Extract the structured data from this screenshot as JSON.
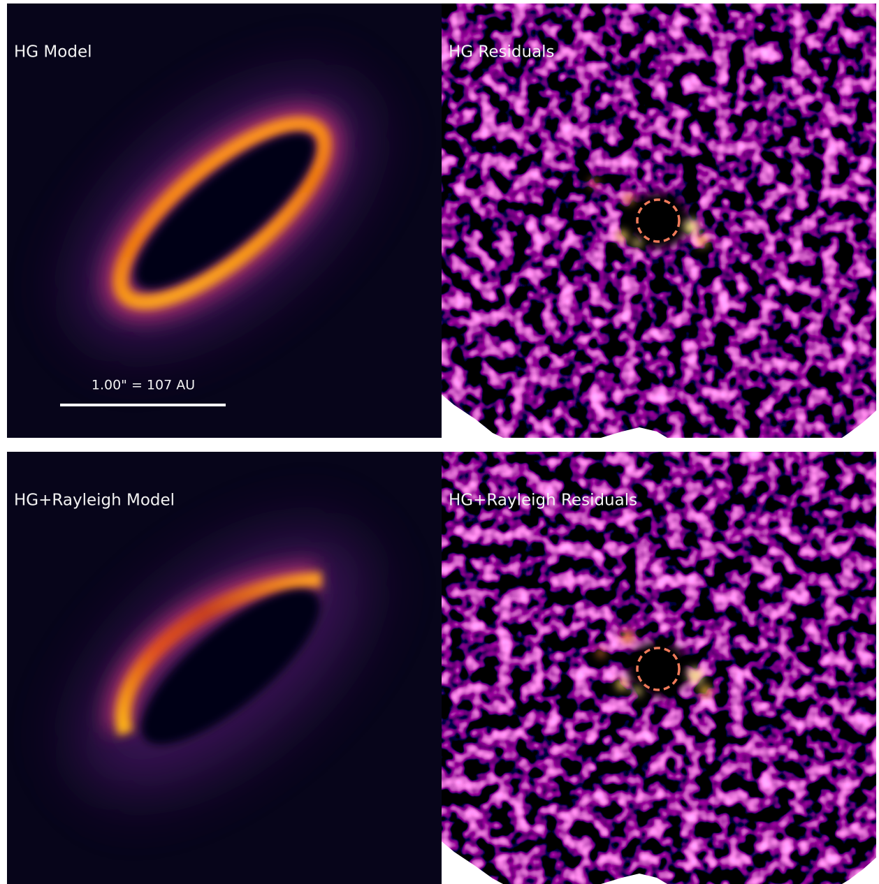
{
  "panels": [
    {
      "label": "HG Model"
    },
    {
      "label": "HG Residuals"
    },
    {
      "label": "HG+Rayleigh Model"
    },
    {
      "label": "HG+Rayleigh Residuals"
    }
  ],
  "scale_bar": {
    "label": "1.00\" = 107 AU"
  }
}
